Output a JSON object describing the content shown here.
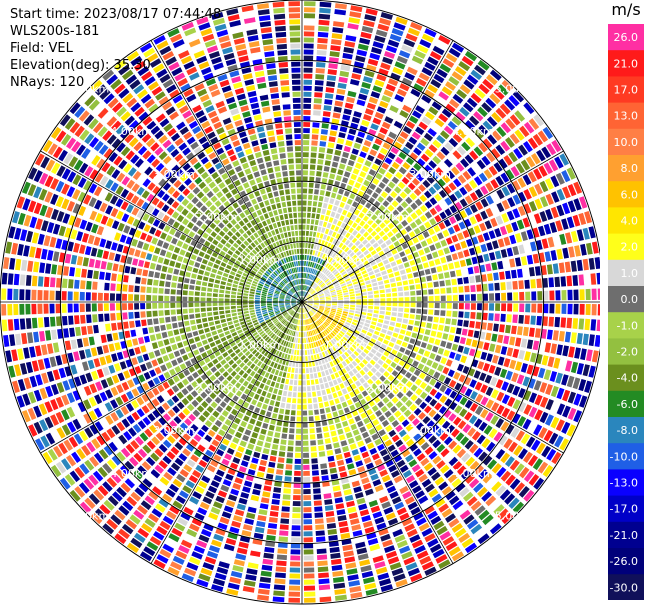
{
  "info": {
    "start_time": "Start time: 2023/08/17 07:44:48",
    "instrument": "WLS200s-181",
    "field": "Field: VEL",
    "elevation": "Elevation(deg): 35.30",
    "nrays": "NRays: 120"
  },
  "colorbar": {
    "unit": "m/s",
    "entries": [
      {
        "label": "26.0",
        "color": "#ff2fa3"
      },
      {
        "label": "21.0",
        "color": "#ff1a1a"
      },
      {
        "label": "17.0",
        "color": "#ff3a22"
      },
      {
        "label": "13.0",
        "color": "#ff6434"
      },
      {
        "label": "10.0",
        "color": "#ff7f45"
      },
      {
        "label": "8.0",
        "color": "#ffa030"
      },
      {
        "label": "6.0",
        "color": "#ffc200"
      },
      {
        "label": "4.0",
        "color": "#ffe600"
      },
      {
        "label": "2.0",
        "color": "#ffff1a"
      },
      {
        "label": "1.0",
        "color": "#d8d8d8"
      },
      {
        "label": "0.0",
        "color": "#6e6e6e"
      },
      {
        "label": "-1.0",
        "color": "#a8d24a"
      },
      {
        "label": "-2.0",
        "color": "#93c040"
      },
      {
        "label": "-4.0",
        "color": "#6b8f1e"
      },
      {
        "label": "-6.0",
        "color": "#238b23"
      },
      {
        "label": "-8.0",
        "color": "#2a86bd"
      },
      {
        "label": "-10.0",
        "color": "#1f5fe6"
      },
      {
        "label": "-13.0",
        "color": "#0a00ff"
      },
      {
        "label": "-17.0",
        "color": "#0000c8"
      },
      {
        "label": "-21.0",
        "color": "#000090"
      },
      {
        "label": "-26.0",
        "color": "#00007a"
      },
      {
        "label": "-30.0",
        "color": "#10105a"
      }
    ]
  },
  "chart_data": {
    "type": "heatmap",
    "projection": "polar PPI",
    "field": "VEL",
    "units": "m/s",
    "elevation_deg": 35.3,
    "nrays": 120,
    "range_rings_km": [
      1.0,
      2.0,
      3.0,
      4.0,
      5.0
    ],
    "ring_labels": [
      "1.00km",
      "2.00km",
      "3.00km",
      "4.00km",
      "5.00km"
    ],
    "max_range_km": 5.0,
    "color_scale": [
      -30,
      -26,
      -21,
      -17,
      -13,
      -10,
      -8,
      -6,
      -4,
      -2,
      -1,
      0,
      1,
      2,
      4,
      6,
      8,
      10,
      13,
      17,
      21,
      26
    ],
    "regions": [
      {
        "description": "negative velocity (green) core",
        "range_km": [
          0,
          0.8
        ],
        "value": -6.0
      },
      {
        "description": "negative velocity (light green) west sector",
        "range_km": [
          0,
          1.8
        ],
        "value": -2.0
      },
      {
        "description": "positive velocity (yellow) east sector",
        "range_km": [
          0,
          1.8
        ],
        "value": 2.0
      },
      {
        "description": "positive velocity (orange) southeast core",
        "range_km": [
          0.3,
          0.8
        ],
        "value": 6.0
      },
      {
        "description": "near-zero (gray) transition",
        "range_km": [
          1.8,
          2.6
        ],
        "value": 0.0
      },
      {
        "description": "noisy random velocities",
        "range_km": [
          2.6,
          5.0
        ],
        "value": null
      }
    ]
  }
}
